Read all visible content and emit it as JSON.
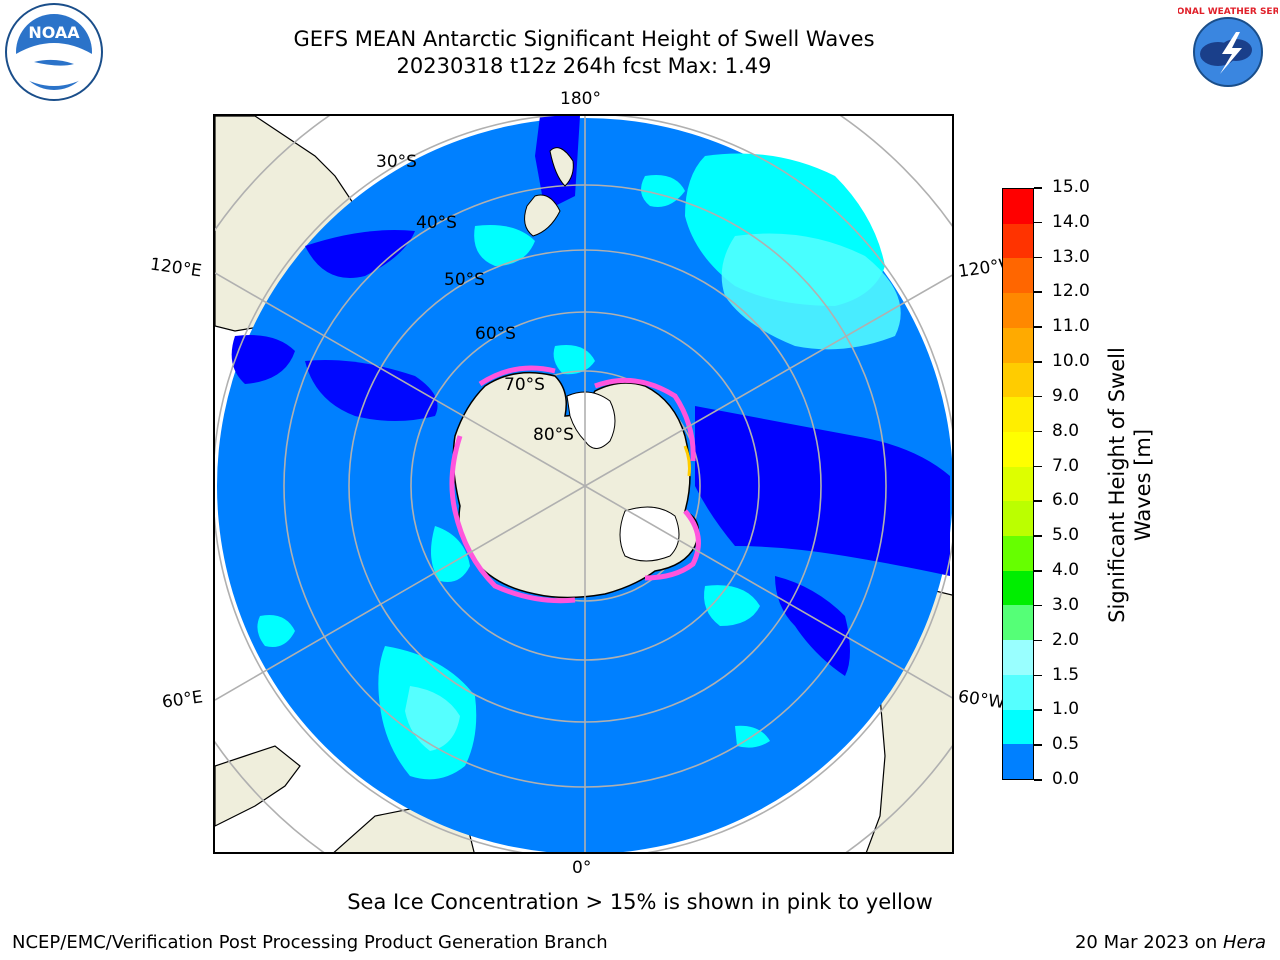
{
  "header": {
    "title_line1": "GEFS MEAN Antarctic Significant Height of Swell Waves",
    "title_line2": "20230318 t12z 264h fcst   Max: 1.49"
  },
  "logos": {
    "left": {
      "icon": "noaa-logo",
      "text": "NOAA"
    },
    "right": {
      "icon": "national-weather-service-logo",
      "text": "NATIONAL WEATHER SERVICE"
    }
  },
  "map": {
    "projection": "south-polar-stereographic",
    "lon_labels": {
      "top": "180°",
      "bottom": "0°",
      "upper_left": "120°E",
      "upper_right": "120°W",
      "lower_left": "60°E",
      "lower_right": "60°W"
    },
    "lat_labels": [
      "30°S",
      "40°S",
      "50°S",
      "60°S",
      "70°S",
      "80°S"
    ],
    "colors": {
      "ocean_main": "#0080ff",
      "ocean_low": "#0000ff",
      "ocean_cyan": "#00ffff",
      "ocean_lightcyan": "#55ffff",
      "land": "#efeedc",
      "sea_ice_pink": "#ff55dd",
      "sea_ice_yellow": "#ffcc00",
      "grid": "#b0b0b0"
    }
  },
  "colorbar": {
    "ticks": [
      "15.0",
      "14.0",
      "13.0",
      "12.0",
      "11.0",
      "10.0",
      "9.0",
      "8.0",
      "7.0",
      "6.0",
      "5.0",
      "4.0",
      "3.0",
      "2.0",
      "1.5",
      "1.0",
      "0.5",
      "0.0"
    ],
    "bin_colors": [
      "#ff0000",
      "#ff3300",
      "#ff6600",
      "#ff8800",
      "#ffaa00",
      "#ffcc00",
      "#ffee00",
      "#ffff00",
      "#ddff00",
      "#bbff00",
      "#66ff00",
      "#00ee00",
      "#55ff77",
      "#99ffff",
      "#55ffff",
      "#00ffff",
      "#0080ff",
      "#0000ff"
    ],
    "label": "Significant Height of Swell Waves [m]"
  },
  "caption": "Sea Ice Concentration > 15% is shown in pink to yellow",
  "footer": {
    "left": "NCEP/EMC/Verification Post Processing Product Generation Branch",
    "right_text": "20 Mar 2023 on ",
    "right_italic": "Hera"
  }
}
